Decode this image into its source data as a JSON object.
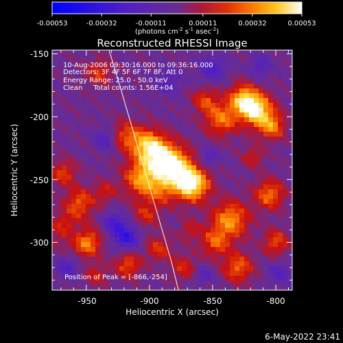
{
  "colorbar": {
    "ticks": [
      "-0.00053",
      "-0.00032",
      "-0.00011",
      "0.00011",
      "0.00032",
      "0.00053"
    ],
    "units_prefix": "(photons cm",
    "units_sup1": "-2",
    "units_mid": " s",
    "units_sup2": "-1",
    "units_suffix": " asec",
    "units_sup3": "-2",
    "units_close": ")"
  },
  "info": {
    "line1": "10-Aug-2006 09:30:16.000 to 09:36:16.000",
    "line2": "Detectors: 3F 4F 5F 6F 7F 8F, Att 0",
    "line3": "Energy Range: 25.0 - 50.0 keV",
    "line4": "Clean     Total counts: 1.56E+04",
    "peak": "Position of Peak = [-866,-254]"
  },
  "footer": {
    "timestamp": "6-May-2022 23:41"
  },
  "chart_data": {
    "type": "heatmap",
    "title": "Reconstructed RHESSI Image",
    "xlabel": "Heliocentric X (arcsec)",
    "ylabel": "Heliocentric Y (arcsec)",
    "xlim": [
      -977,
      -787
    ],
    "ylim": [
      -338,
      -147
    ],
    "x_ticks": [
      -950,
      -900,
      -850,
      -800
    ],
    "y_ticks": [
      -150,
      -200,
      -250,
      -300
    ],
    "x_tick_labels": [
      "-950",
      "-900",
      "-850",
      "-800"
    ],
    "y_tick_labels": [
      "-150",
      "-200",
      "-250",
      "-300"
    ],
    "colorscale_range": [
      -0.00053,
      0.00053
    ],
    "peak_position": [
      -866,
      -254
    ],
    "limb_curve": {
      "x": [
        -932,
        -925,
        -918,
        -911,
        -904,
        -897,
        -890,
        -883,
        -877
      ],
      "y": [
        -147,
        -170,
        -194,
        -218,
        -242,
        -266,
        -290,
        -314,
        -338
      ]
    },
    "blobs": [
      {
        "x": -866,
        "y": -254,
        "r": 9,
        "v": 0.00053
      },
      {
        "x": -880,
        "y": -240,
        "r": 10,
        "v": 0.00045
      },
      {
        "x": -893,
        "y": -230,
        "r": 10,
        "v": 0.00035
      },
      {
        "x": -903,
        "y": -222,
        "r": 9,
        "v": 0.0003
      },
      {
        "x": -906,
        "y": -249,
        "r": 10,
        "v": 0.00035
      },
      {
        "x": -890,
        "y": -258,
        "r": 9,
        "v": 0.00022
      },
      {
        "x": -919,
        "y": -215,
        "r": 8,
        "v": 0.00022
      },
      {
        "x": -815,
        "y": -195,
        "r": 9,
        "v": 0.00048
      },
      {
        "x": -826,
        "y": -186,
        "r": 8,
        "v": 0.00038
      },
      {
        "x": -803,
        "y": -208,
        "r": 7,
        "v": 0.0003
      },
      {
        "x": -963,
        "y": -290,
        "r": 9,
        "v": 0.00045
      },
      {
        "x": -950,
        "y": -300,
        "r": 8,
        "v": 0.00035
      },
      {
        "x": -955,
        "y": -268,
        "r": 8,
        "v": 0.00025
      },
      {
        "x": -968,
        "y": -245,
        "r": 7,
        "v": 0.00022
      },
      {
        "x": -843,
        "y": -202,
        "r": 9,
        "v": 0.0003
      },
      {
        "x": -856,
        "y": -187,
        "r": 7,
        "v": 0.00022
      },
      {
        "x": -836,
        "y": -282,
        "r": 10,
        "v": 0.00035
      },
      {
        "x": -830,
        "y": -320,
        "r": 8,
        "v": 0.00028
      },
      {
        "x": -848,
        "y": -300,
        "r": 8,
        "v": 0.00025
      },
      {
        "x": -805,
        "y": -262,
        "r": 8,
        "v": 0.0003
      },
      {
        "x": -800,
        "y": -300,
        "r": 7,
        "v": 0.00024
      },
      {
        "x": -917,
        "y": -318,
        "r": 7,
        "v": 0.00025
      },
      {
        "x": -893,
        "y": -305,
        "r": 7,
        "v": 0.0002
      },
      {
        "x": -940,
        "y": -165,
        "r": 7,
        "v": 0.0002
      },
      {
        "x": -873,
        "y": -320,
        "r": 7,
        "v": 0.00018
      },
      {
        "x": -935,
        "y": -260,
        "r": 6,
        "v": 0.00016
      },
      {
        "x": -903,
        "y": -278,
        "r": 7,
        "v": 0.00018
      },
      {
        "x": -818,
        "y": -232,
        "r": 6,
        "v": 0.00016
      },
      {
        "x": -942,
        "y": -326,
        "r": 6,
        "v": 0.00016
      },
      {
        "x": -868,
        "y": -290,
        "r": 6,
        "v": 0.00014
      },
      {
        "x": -960,
        "y": -292,
        "r": 8,
        "v": -0.0004
      },
      {
        "x": -918,
        "y": -296,
        "r": 7,
        "v": -0.00032
      },
      {
        "x": -928,
        "y": -285,
        "r": 6,
        "v": -0.00025
      },
      {
        "x": -935,
        "y": -218,
        "r": 6,
        "v": -0.0002
      },
      {
        "x": -850,
        "y": -162,
        "r": 7,
        "v": -0.00022
      },
      {
        "x": -853,
        "y": -232,
        "r": 5,
        "v": -0.00018
      },
      {
        "x": -812,
        "y": -160,
        "r": 6,
        "v": -0.00018
      },
      {
        "x": -885,
        "y": -172,
        "r": 7,
        "v": -0.00016
      },
      {
        "x": -965,
        "y": -320,
        "r": 6,
        "v": -0.0002
      },
      {
        "x": -797,
        "y": -325,
        "r": 6,
        "v": -0.00018
      },
      {
        "x": -857,
        "y": -326,
        "r": 5,
        "v": -0.00016
      }
    ]
  }
}
